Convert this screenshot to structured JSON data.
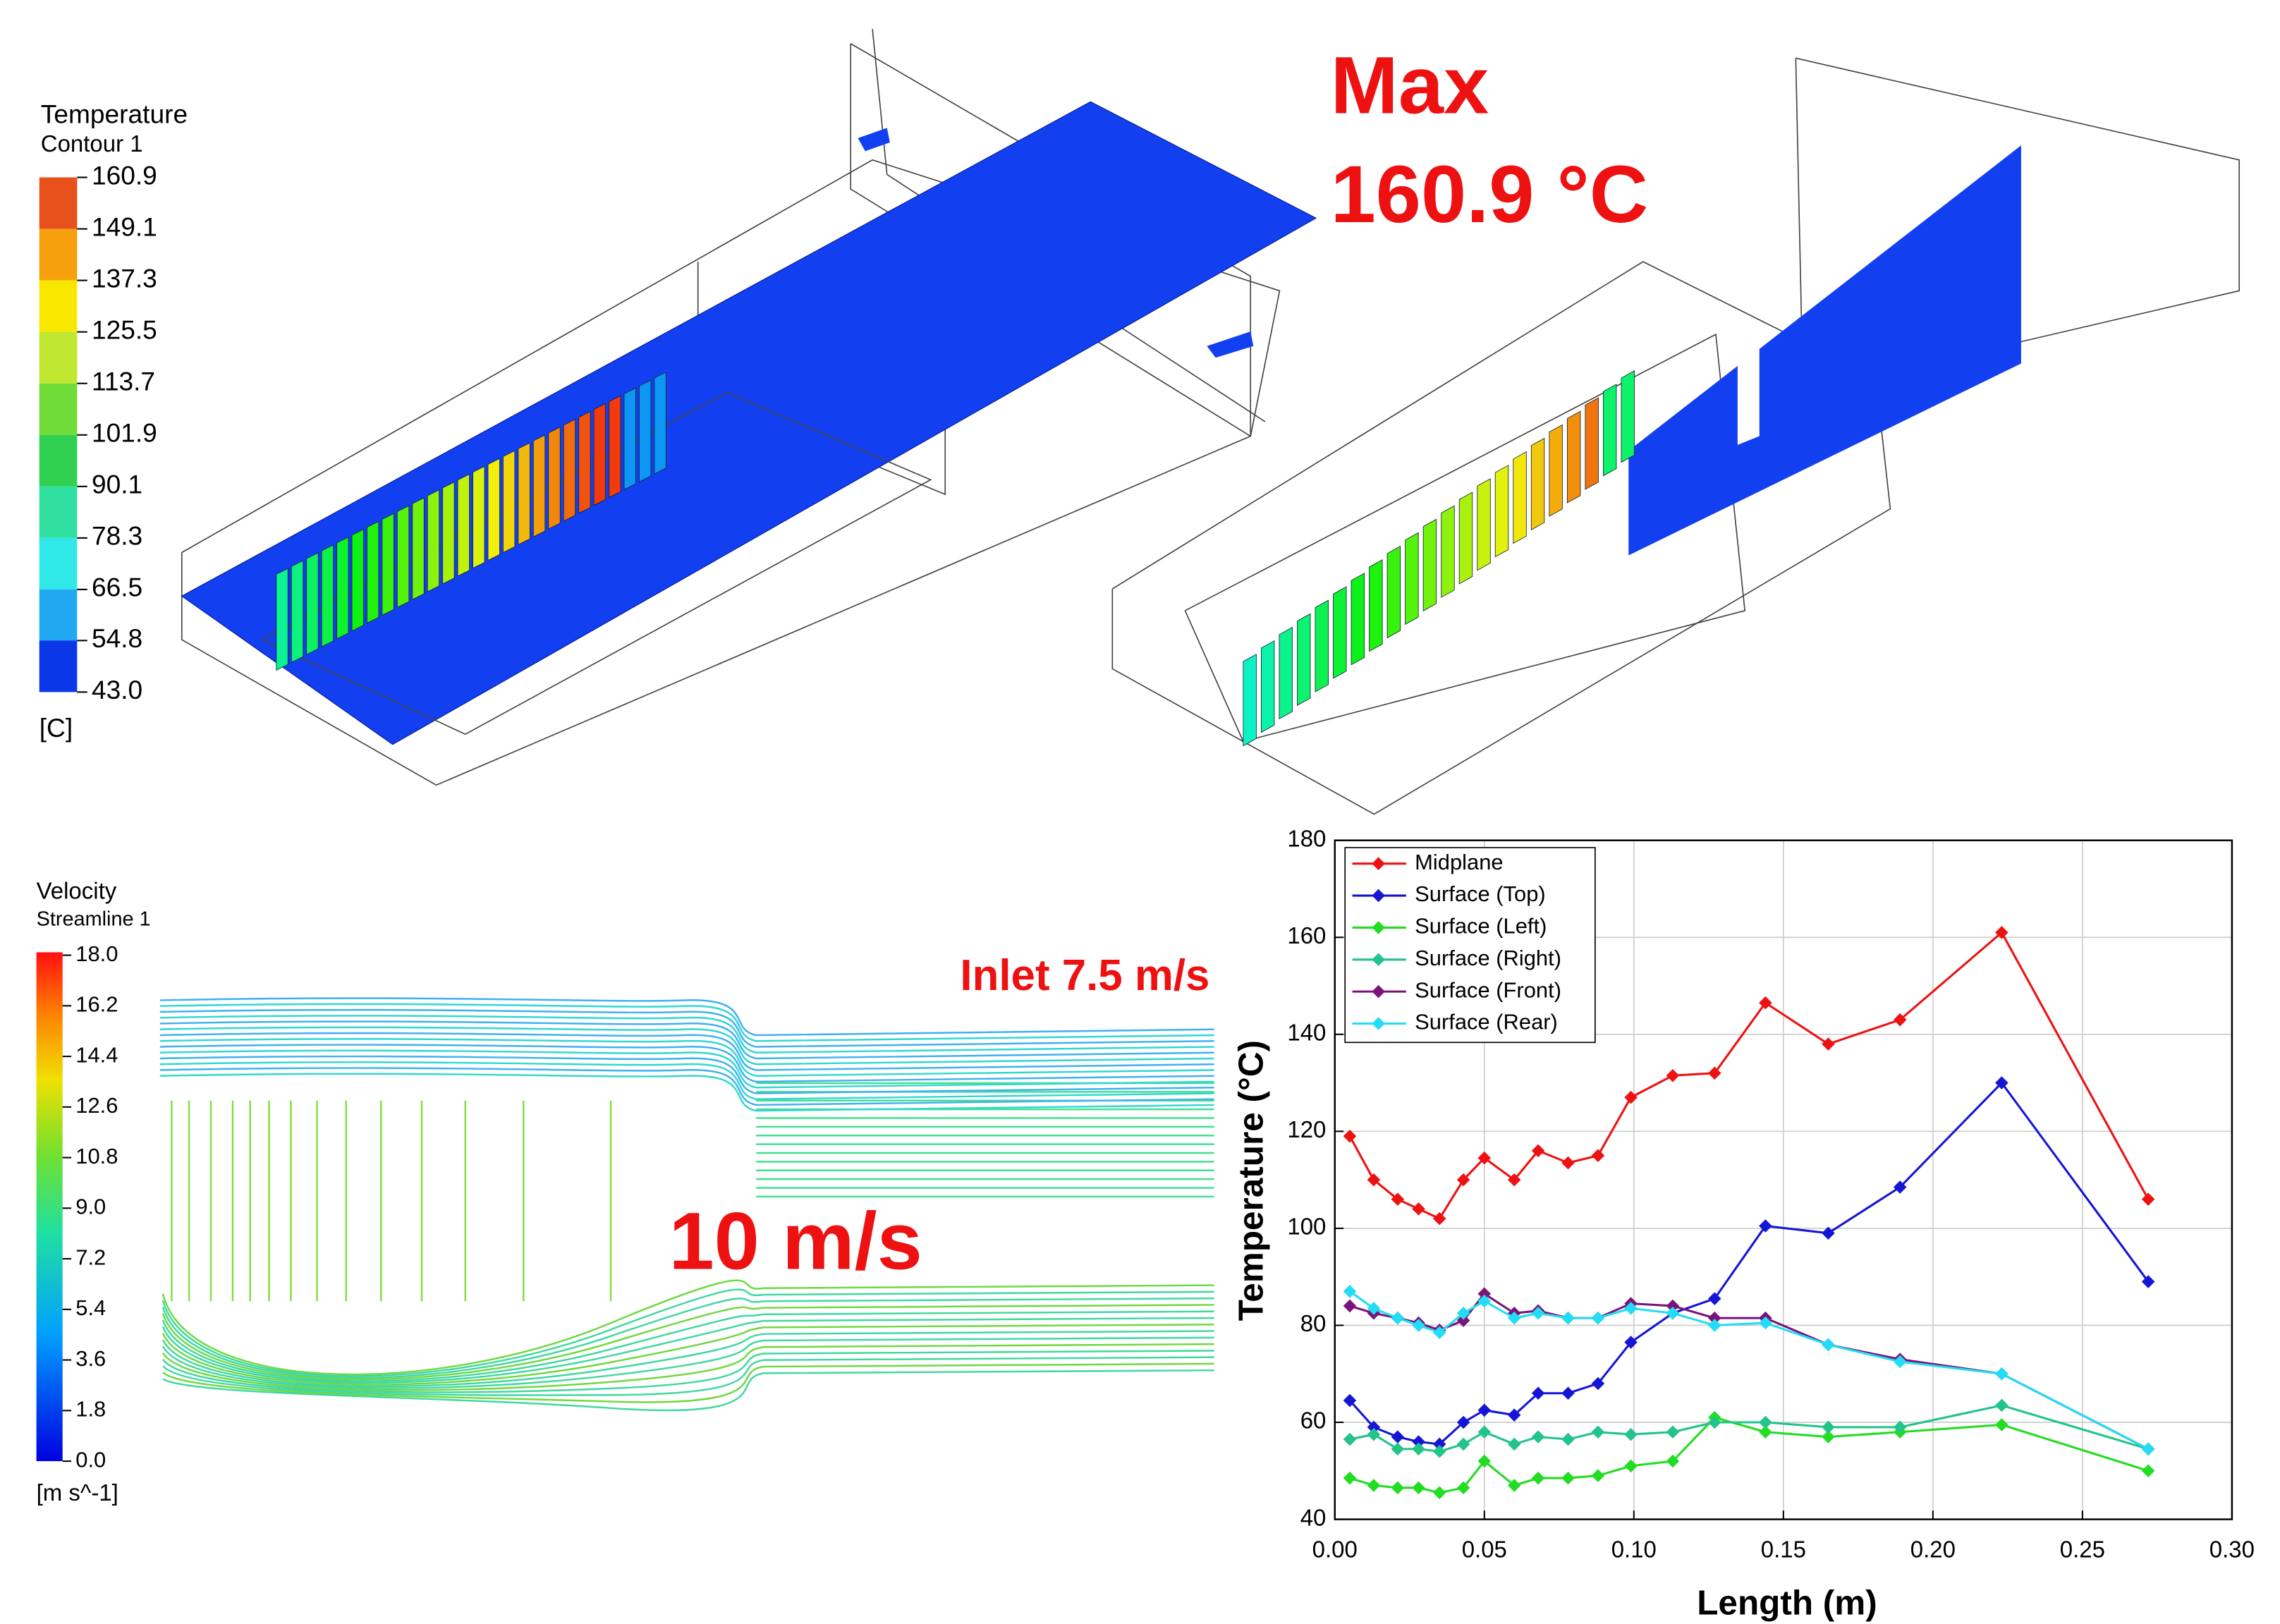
{
  "temperature_legend": {
    "title": "Temperature",
    "subtitle": "Contour 1",
    "unit": "[C]",
    "ticks": [
      160.9,
      149.1,
      137.3,
      125.5,
      113.7,
      101.9,
      90.1,
      78.3,
      66.5,
      54.8,
      {
        "value": 43,
        "label": "43.0"
      }
    ],
    "colors": [
      "#e8501c",
      "#f5a00c",
      "#f8e800",
      "#c0e830",
      "#70dc38",
      "#30d050",
      "#30e0a0",
      "#30e8e8",
      "#20a8f0",
      "#0a38e8"
    ]
  },
  "velocity_legend": {
    "title": "Velocity",
    "subtitle": "Streamline 1",
    "unit": "[m s^-1]",
    "ticks": [
      {
        "value": 18,
        "label": "18.0"
      },
      16.2,
      14.4,
      12.6,
      10.8,
      {
        "value": 9,
        "label": "9.0"
      },
      7.2,
      5.4,
      3.6,
      1.8,
      {
        "value": 0,
        "label": "0.0"
      }
    ]
  },
  "annotations": {
    "max_label": "Max",
    "max_value": "160.9 °C",
    "inlet": "Inlet 7.5 m/s",
    "center_velocity": "10 m/s"
  },
  "chart_data": {
    "type": "line",
    "xlabel": "Length (m)",
    "ylabel": "Temperature (°C)",
    "x": [
      0.005,
      0.013,
      0.021,
      0.028,
      0.035,
      0.043,
      0.05,
      0.06,
      0.068,
      0.078,
      0.088,
      0.099,
      0.113,
      0.127,
      0.144,
      0.165,
      0.189,
      0.223,
      0.272
    ],
    "series": [
      {
        "name": "Midplane",
        "color": "#ee1111",
        "values": [
          119,
          110,
          106,
          104,
          102,
          110,
          114.5,
          110,
          116,
          113.5,
          115,
          127,
          131.5,
          132,
          146.5,
          138,
          143,
          161,
          106
        ]
      },
      {
        "name": "Surface (Top)",
        "color": "#1515d5",
        "values": [
          64.5,
          59,
          57,
          56,
          55.5,
          60,
          62.5,
          61.5,
          66,
          66,
          68,
          76.5,
          82.5,
          85.5,
          100.5,
          99,
          108.5,
          130,
          89
        ]
      },
      {
        "name": "Surface (Left)",
        "color": "#22dd22",
        "values": [
          48.5,
          47,
          46.5,
          46.5,
          45.5,
          46.5,
          52,
          47,
          48.5,
          48.5,
          49,
          51,
          52,
          61,
          58,
          57,
          58,
          59.5,
          50
        ]
      },
      {
        "name": "Surface (Right)",
        "color": "#22c48a",
        "values": [
          56.5,
          57.5,
          54.5,
          54.5,
          54,
          55.5,
          58,
          55.5,
          57,
          56.5,
          58,
          57.5,
          58,
          60,
          60,
          59,
          59,
          63.5,
          54.5
        ]
      },
      {
        "name": "Surface (Front)",
        "color": "#7a147a",
        "values": [
          84,
          82.5,
          81.5,
          80.5,
          79,
          81,
          86.5,
          82.5,
          83,
          81.5,
          81.5,
          84.5,
          84,
          81.5,
          81.5,
          76,
          73,
          70,
          54.5
        ]
      },
      {
        "name": "Surface (Rear)",
        "color": "#22ddf5",
        "values": [
          87,
          83.5,
          81.5,
          80,
          78.5,
          82.5,
          85,
          81.5,
          82.5,
          81.5,
          81.5,
          83.5,
          82.5,
          80,
          80.5,
          76,
          72.5,
          70,
          54.5
        ]
      }
    ],
    "xlim": [
      0,
      0.3
    ],
    "ylim": [
      40,
      180
    ],
    "xticks": [
      {
        "value": 0,
        "label": "0.00"
      },
      0.05,
      {
        "value": 0.1,
        "label": "0.10"
      },
      0.15,
      {
        "value": 0.2,
        "label": "0.20"
      },
      0.25,
      {
        "value": 0.3,
        "label": "0.30"
      }
    ],
    "yticks": [
      40,
      60,
      80,
      100,
      120,
      140,
      160,
      180
    ],
    "grid": true,
    "legend": "upper left"
  }
}
